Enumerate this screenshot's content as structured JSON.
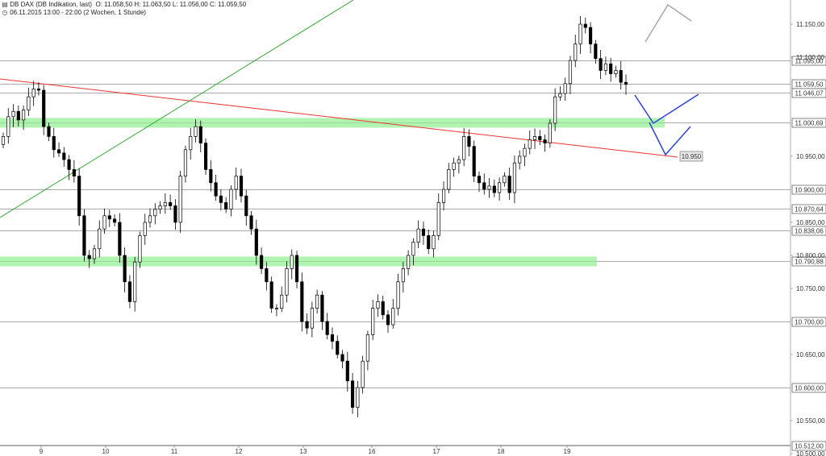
{
  "header": {
    "title": "DB DAX (DB Indikation, last)",
    "ohlc": "O: 11.058,50   H: 11.063,50   L: 11.056,00   C: 11.059,50",
    "period": "06.11.2015 13:00 - 22:00 (2 Wochen, 1 Stunde)",
    "icons": [
      "chart-icon",
      "clock-icon"
    ]
  },
  "chart_data": {
    "type": "candlestick",
    "title": "DB DAX (DB Indikation, last)",
    "ylim": [
      10500,
      11200
    ],
    "x_tick_labels": [
      "9",
      "10",
      "11",
      "12",
      "13",
      "16",
      "17",
      "18",
      "19"
    ],
    "y_tick_labels": [
      "11.150,00",
      "11.100,00",
      "10.950,00",
      "10.850,00",
      "10.800,00",
      "10.750,00",
      "10.650,00",
      "10.550,00",
      "10.500,00"
    ],
    "level_labels": [
      {
        "label": "11.095,00",
        "value": 11095
      },
      {
        "label": "11.059,50",
        "value": 11059.5
      },
      {
        "label": "11.046,07",
        "value": 11046.07
      },
      {
        "label": "11.000,69",
        "value": 11000.69
      },
      {
        "label": "10.900,00",
        "value": 10900
      },
      {
        "label": "10.870,64",
        "value": 10870.64
      },
      {
        "label": "10.838,06",
        "value": 10838.06
      },
      {
        "label": "10.790,88",
        "value": 10790.88
      },
      {
        "label": "10.700,00",
        "value": 10700
      },
      {
        "label": "10.600,00",
        "value": 10600
      },
      {
        "label": "10.512,00",
        "value": 10512
      }
    ],
    "annotation": {
      "label": "10.950",
      "value": 10950
    },
    "close": [
      10980,
      11010,
      11018,
      11005,
      11020,
      11040,
      11052,
      11050,
      10995,
      10980,
      10960,
      10955,
      10945,
      10930,
      10920,
      10860,
      10800,
      10795,
      10810,
      10840,
      10860,
      10855,
      10850,
      10800,
      10760,
      10730,
      10790,
      10830,
      10850,
      10860,
      10870,
      10875,
      10880,
      10875,
      10850,
      10920,
      10960,
      10980,
      10995,
      10970,
      10930,
      10910,
      10890,
      10880,
      10870,
      10900,
      10920,
      10890,
      10860,
      10840,
      10800,
      10780,
      10760,
      10720,
      10720,
      10740,
      10780,
      10800,
      10760,
      10700,
      10690,
      10720,
      10740,
      10700,
      10680,
      10670,
      10650,
      10640,
      10610,
      10570,
      10600,
      10640,
      10680,
      10720,
      10730,
      10710,
      10695,
      10720,
      10760,
      10780,
      10800,
      10820,
      10840,
      10830,
      10810,
      10830,
      10880,
      10900,
      10930,
      10940,
      10945,
      10980,
      10965,
      10920,
      10910,
      10900,
      10905,
      10895,
      10910,
      10920,
      10895,
      10940,
      10950,
      10962,
      10975,
      10980,
      10975,
      10970,
      11000,
      11040,
      11045,
      11060,
      11095,
      11120,
      11150,
      11145,
      11120,
      11098,
      11080,
      11090,
      11075,
      11080,
      11062,
      11059
    ]
  }
}
